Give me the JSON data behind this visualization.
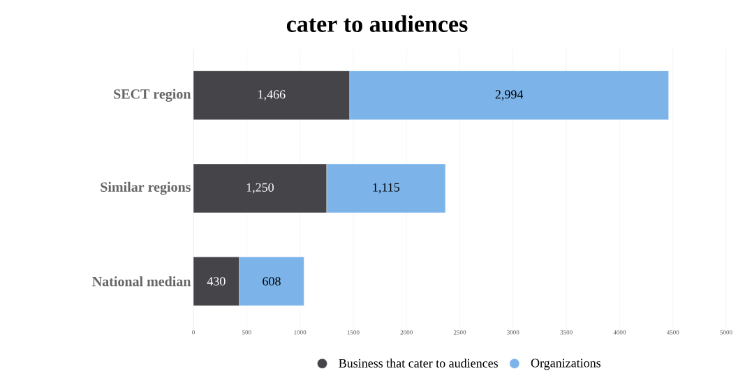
{
  "chart_data": {
    "type": "bar",
    "orientation": "horizontal",
    "stacked": true,
    "title": "cater to audiences",
    "categories": [
      "SECT region",
      "Similar regions",
      "National median"
    ],
    "series": [
      {
        "name": "Business that cater to audiences",
        "color": "#454449",
        "values": [
          1466,
          1250,
          430
        ],
        "value_labels": [
          "1,466",
          "1,250",
          "430"
        ]
      },
      {
        "name": "Organizations",
        "color": "#7cb4ea",
        "values": [
          2994,
          1115,
          608
        ],
        "value_labels": [
          "2,994",
          "1,115",
          "608"
        ]
      }
    ],
    "xlim": [
      0,
      5000
    ],
    "xticks": [
      0,
      500,
      1000,
      1500,
      2000,
      2500,
      3000,
      3500,
      4000,
      4500,
      5000
    ],
    "grid": "x",
    "legend": "bottom"
  }
}
